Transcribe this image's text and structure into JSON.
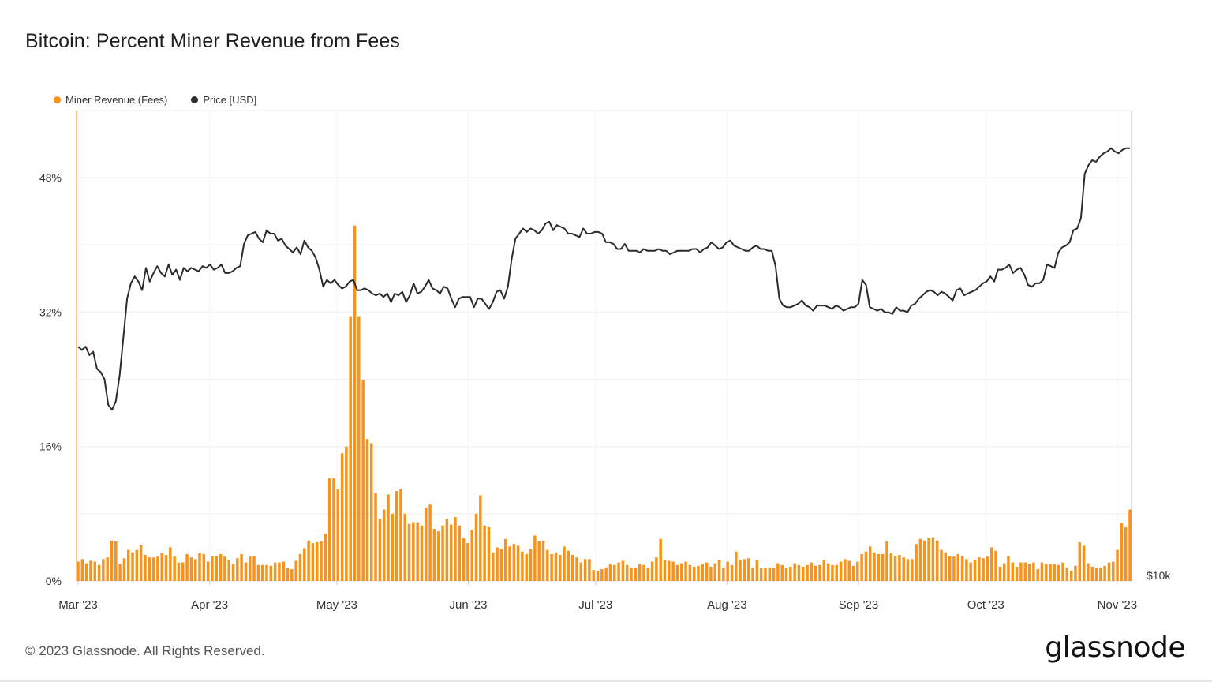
{
  "title": "Bitcoin: Percent Miner Revenue from Fees",
  "footer": "© 2023 Glassnode. All Rights Reserved.",
  "brand": "glassnode",
  "colors": {
    "fees": "#f7931a",
    "price": "#2b2b2b",
    "grid": "#ececec"
  },
  "chart_data": {
    "type": "bar",
    "title": "Bitcoin: Percent Miner Revenue from Fees",
    "legend_position": "top-left",
    "grid": true,
    "x_start": "2023-03-01",
    "x_end": "2023-11-04",
    "x_ticks": [
      "Mar '23",
      "Apr '23",
      "May '23",
      "Jun '23",
      "Jul '23",
      "Aug '23",
      "Sep '23",
      "Oct '23",
      "Nov '23"
    ],
    "y_left": {
      "ticks": [
        "0%",
        "16%",
        "32%",
        "48%"
      ],
      "range": [
        0,
        56
      ]
    },
    "y_right": {
      "ticks": [
        "$10k"
      ],
      "label_at_bottom": "$10k",
      "range": [
        10000,
        37500
      ]
    },
    "series": [
      {
        "name": "Miner Revenue (Fees)",
        "kind": "bar",
        "unit": "%",
        "values": [
          2.3,
          2.6,
          2.1,
          2.4,
          2.3,
          1.9,
          2.6,
          2.8,
          4.8,
          4.7,
          2.0,
          2.7,
          3.7,
          3.4,
          3.7,
          4.3,
          3.1,
          2.8,
          2.8,
          2.9,
          3.3,
          3.1,
          4.0,
          2.9,
          2.2,
          2.2,
          3.2,
          2.8,
          2.6,
          3.3,
          3.2,
          2.3,
          3.0,
          3.0,
          3.2,
          2.9,
          2.5,
          2.0,
          2.7,
          3.2,
          2.2,
          2.9,
          3.0,
          1.9,
          1.9,
          1.9,
          1.8,
          2.2,
          2.2,
          2.3,
          1.5,
          1.4,
          2.4,
          3.2,
          3.9,
          4.8,
          4.5,
          4.6,
          4.7,
          5.6,
          12.2,
          12.2,
          10.9,
          15.2,
          16.0,
          31.5,
          42.3,
          31.5,
          23.9,
          16.9,
          16.4,
          10.5,
          7.4,
          8.5,
          10.3,
          8.0,
          10.7,
          10.9,
          8.0,
          6.8,
          7.0,
          7.0,
          6.6,
          8.7,
          9.1,
          6.2,
          5.9,
          6.6,
          7.4,
          6.7,
          7.6,
          6.6,
          5.1,
          4.5,
          6.1,
          8.0,
          10.2,
          6.6,
          6.4,
          3.4,
          4.0,
          3.8,
          5.0,
          4.1,
          4.4,
          4.2,
          3.5,
          3.2,
          3.8,
          5.4,
          4.7,
          4.8,
          3.7,
          3.2,
          3.4,
          3.1,
          4.1,
          3.6,
          3.1,
          2.8,
          2.2,
          2.6,
          2.6,
          1.3,
          1.2,
          1.4,
          1.6,
          2.0,
          1.9,
          2.2,
          2.4,
          1.9,
          1.6,
          1.6,
          2.0,
          1.9,
          1.6,
          2.3,
          2.8,
          5.0,
          2.5,
          2.4,
          2.3,
          1.9,
          2.1,
          2.3,
          1.9,
          1.7,
          1.8,
          2.0,
          2.2,
          1.7,
          2.1,
          2.5,
          1.6,
          2.3,
          1.9,
          3.5,
          2.5,
          2.6,
          2.7,
          1.6,
          2.5,
          1.5,
          1.5,
          1.6,
          1.6,
          2.1,
          1.9,
          1.5,
          1.7,
          2.1,
          1.9,
          1.7,
          1.9,
          2.2,
          1.8,
          1.9,
          2.5,
          2.1,
          1.9,
          1.9,
          2.3,
          2.6,
          2.4,
          1.8,
          2.3,
          3.2,
          3.5,
          4.1,
          3.4,
          3.2,
          3.2,
          4.7,
          3.3,
          3.0,
          3.1,
          2.8,
          2.6,
          2.6,
          4.4,
          5.0,
          4.8,
          5.1,
          5.2,
          4.8,
          3.7,
          3.4,
          3.0,
          2.9,
          3.2,
          3.0,
          2.6,
          2.2,
          2.5,
          2.8,
          2.7,
          2.9,
          4.0,
          3.6,
          1.7,
          2.1,
          3.0,
          2.2,
          1.7,
          2.2,
          2.2,
          2.0,
          2.2,
          1.4,
          2.2,
          2.0,
          2.0,
          2.0,
          1.9,
          2.2,
          1.6,
          1.2,
          1.8,
          4.6,
          4.2,
          2.1,
          1.7,
          1.6,
          1.6,
          1.8,
          2.2,
          2.3,
          3.7,
          6.9,
          6.4,
          8.5
        ],
        "color": "#f7931a"
      },
      {
        "name": "Price [USD]",
        "kind": "line",
        "unit": "USD",
        "values": [
          23700,
          23500,
          23700,
          23200,
          23400,
          22400,
          22200,
          21800,
          20300,
          20000,
          20500,
          22000,
          24200,
          26500,
          27400,
          27800,
          27500,
          27000,
          28300,
          27500,
          28000,
          28400,
          28000,
          27800,
          28500,
          27900,
          28200,
          27600,
          28300,
          28100,
          28300,
          28200,
          28100,
          28400,
          28300,
          28500,
          28200,
          28300,
          28500,
          28000,
          28000,
          28100,
          28300,
          28400,
          29700,
          30200,
          30300,
          30400,
          30000,
          29800,
          30500,
          30300,
          30300,
          29900,
          30000,
          29600,
          29400,
          29200,
          29500,
          29100,
          29900,
          29500,
          29300,
          28900,
          28200,
          27200,
          27600,
          27400,
          27600,
          27300,
          27100,
          27200,
          27500,
          27600,
          27000,
          27000,
          27100,
          27000,
          26800,
          26700,
          26800,
          26600,
          26800,
          26300,
          26800,
          26700,
          26900,
          26300,
          26700,
          27400,
          26800,
          26900,
          27200,
          27600,
          27100,
          27000,
          26800,
          27200,
          27100,
          26500,
          26000,
          26500,
          26600,
          26600,
          26600,
          26000,
          26500,
          26500,
          26200,
          25900,
          26300,
          26900,
          27000,
          26500,
          27200,
          28800,
          30000,
          30300,
          30600,
          30400,
          30600,
          30500,
          30300,
          30500,
          30900,
          31000,
          30500,
          30800,
          30700,
          30600,
          30300,
          30300,
          30200,
          30100,
          30600,
          30300,
          30300,
          30400,
          30400,
          30300,
          29800,
          29800,
          29700,
          29400,
          29400,
          29700,
          29300,
          29300,
          29300,
          29200,
          29400,
          29300,
          29300,
          29300,
          29400,
          29300,
          29300,
          29100,
          29200,
          29300,
          29300,
          29300,
          29300,
          29400,
          29400,
          29200,
          29400,
          29500,
          29800,
          29600,
          29400,
          29500,
          29800,
          29900,
          29600,
          29500,
          29400,
          29300,
          29300,
          29500,
          29600,
          29400,
          29400,
          29300,
          29300,
          28400,
          26500,
          26100,
          26000,
          26000,
          26100,
          26200,
          26400,
          26100,
          26000,
          25800,
          26100,
          26100,
          26100,
          26000,
          25900,
          26100,
          26000,
          25800,
          25900,
          26000,
          26000,
          26200,
          27600,
          27300,
          26000,
          25900,
          25800,
          25900,
          25700,
          25700,
          25600,
          26000,
          25800,
          25800,
          25700,
          26100,
          26200,
          26500,
          26700,
          26900,
          27000,
          26900,
          26700,
          26900,
          26800,
          26600,
          26400,
          27000,
          27100,
          26700,
          26800,
          26900,
          27000,
          27200,
          27400,
          27500,
          27800,
          27500,
          28200,
          28200,
          28300,
          28500,
          28000,
          28200,
          28300,
          27900,
          27300,
          27200,
          27400,
          27400,
          27600,
          28500,
          28400,
          28300,
          29200,
          29500,
          29600,
          29800,
          30500,
          30600,
          31200,
          33800,
          34300,
          34600,
          34500,
          34800,
          35000,
          35100,
          35300,
          35100,
          35000,
          35200,
          35300,
          35300
        ],
        "color": "#2b2b2b"
      }
    ]
  }
}
